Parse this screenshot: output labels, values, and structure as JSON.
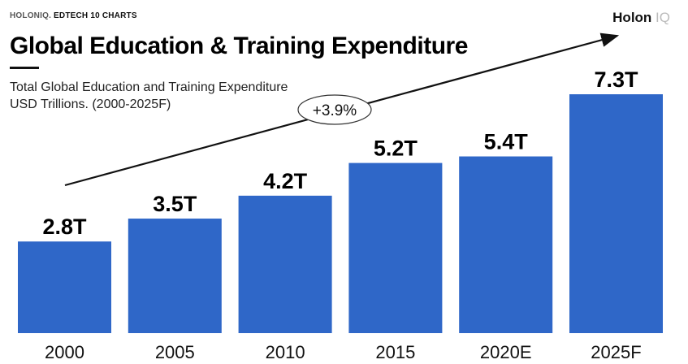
{
  "header": {
    "kicker_brand": "HOLONIQ.",
    "kicker_series": "EDTECH 10 CHARTS",
    "logo_main": "Holon",
    "logo_suffix": "IQ"
  },
  "chart_data": {
    "type": "bar",
    "title": "Global Education & Training Expenditure",
    "subtitle_line1": "Total Global Education and Training Expenditure",
    "subtitle_line2": "USD Trillions. (2000-2025F)",
    "categories": [
      "2000",
      "2005",
      "2010",
      "2015",
      "2020E",
      "2025F"
    ],
    "values": [
      2.8,
      3.5,
      4.2,
      5.2,
      5.4,
      7.3
    ],
    "data_labels": [
      "2.8T",
      "3.5T",
      "4.2T",
      "5.2T",
      "5.4T",
      "7.3T"
    ],
    "ylim": [
      0,
      8
    ],
    "bar_color": "#2f67c8",
    "annotation": "+3.9%",
    "grid": false,
    "legend": "none"
  }
}
